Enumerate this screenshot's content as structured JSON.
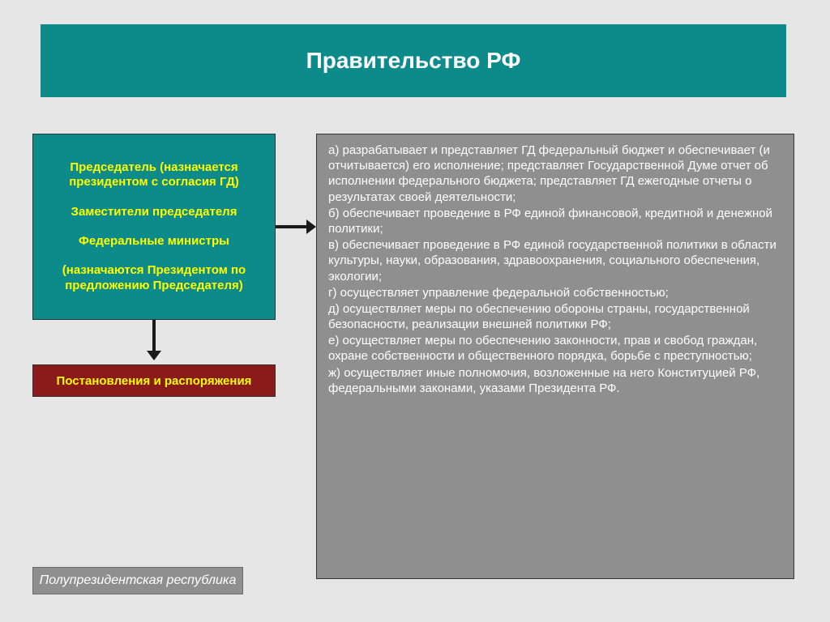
{
  "colors": {
    "background": "#e6e6e6",
    "title_bg": "#0d8b8b",
    "title_text": "#ffffff",
    "composition_bg": "#0d8b8b",
    "composition_text": "#ffff00",
    "decrees_bg": "#8b1a1a",
    "decrees_text": "#ffff00",
    "functions_bg": "#8f8f8f",
    "functions_text": "#ffffff",
    "footer_bg": "#8f8f8f",
    "footer_border": "#6d6d6d",
    "footer_text": "#ffffff",
    "box_border": "#333333",
    "arrow": "#1a1a1a"
  },
  "fontsize": {
    "title": 28,
    "composition": 15,
    "decrees": 15,
    "functions": 15,
    "footer": 16
  },
  "title": "Правительство РФ",
  "composition": {
    "line1": "Председатель (назначается президентом с согласия ГД)",
    "line2": "Заместители председателя",
    "line3": "Федеральные министры",
    "line4": "(назначаются Президентом по предложению Председателя)"
  },
  "decrees": "Постановления и распоряжения",
  "functions": {
    "a": "а) разрабатывает и представляет ГД федеральный бюджет и обеспечивает (и отчитывается) его исполнение; представляет Государственной Думе отчет об исполнении федерального бюджета; представляет ГД ежегодные отчеты о результатах своей деятельности;",
    "b": "б) обеспечивает проведение в РФ единой финансовой, кредитной и денежной политики;",
    "c": "в) обеспечивает проведение в РФ единой государственной политики в области культуры, науки, образования, здравоохранения, социального обеспечения, экологии;",
    "d": "г) осуществляет управление федеральной собственностью;",
    "e": "д) осуществляет меры по обеспечению обороны страны, государственной безопасности, реализации внешней политики РФ;",
    "f": "е) осуществляет меры по обеспечению законности, прав и свобод граждан, охране собственности и общественного порядка, борьбе с преступностью;",
    "g": "ж) осуществляет иные полномочия, возложенные на него Конституцией РФ, федеральными законами, указами Президента РФ."
  },
  "footer": "Полупрезидентская республика"
}
